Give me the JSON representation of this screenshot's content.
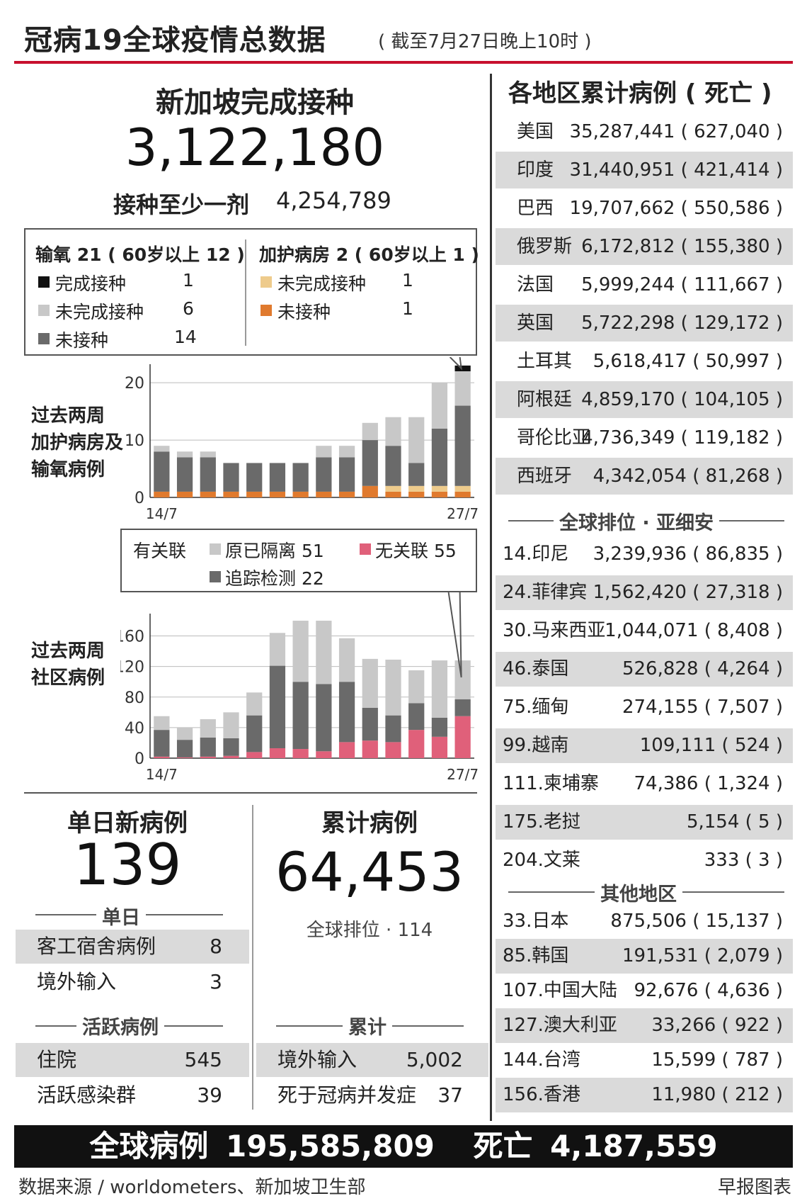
{
  "title": "冠病19全球疫情总数据",
  "subtitle": "( 截至7月27日晚上10时 )",
  "vaccination": {
    "heading": "新加坡完成接种",
    "completed": "3,122,180",
    "at_least_one_label": "接种至少一剂",
    "at_least_one": "4,254,789"
  },
  "oxygen_legend": {
    "oxygen_title": "输氧 21 ( 60岁以上 12 )",
    "icu_title": "加护病房 2 ( 60岁以上 1 )",
    "oxygen_items": [
      {
        "label": "完成接种",
        "value": "1",
        "color": "#111111"
      },
      {
        "label": "未完成接种",
        "value": "6",
        "color": "#c8c8c8"
      },
      {
        "label": "未接种",
        "value": "14",
        "color": "#6a6a6a"
      }
    ],
    "icu_items": [
      {
        "label": "未完成接种",
        "value": "1",
        "color": "#eecb8c"
      },
      {
        "label": "未接种",
        "value": "1",
        "color": "#e07a2e"
      }
    ]
  },
  "community_legend": {
    "linked_label": "有关联",
    "items": [
      {
        "label": "原已隔离  51",
        "color": "#c8c8c8"
      },
      {
        "label": "无关联  55",
        "color": "#e0607a"
      },
      {
        "label": "追踪检测  22",
        "color": "#6a6a6a"
      }
    ]
  },
  "chart_data": [
    {
      "type": "bar",
      "stacked": true,
      "title": "过去两周加护病房及输氧病例",
      "x_start": "14/7",
      "x_end": "27/7",
      "ylim": [
        0,
        22
      ],
      "yticks": [
        0,
        10,
        20
      ],
      "categories": [
        "14/7",
        "15/7",
        "16/7",
        "17/7",
        "18/7",
        "19/7",
        "20/7",
        "21/7",
        "22/7",
        "23/7",
        "24/7",
        "25/7",
        "26/7",
        "27/7"
      ],
      "series": [
        {
          "name": "未接种",
          "color": "#e07a2e",
          "values": [
            1,
            1,
            1,
            1,
            1,
            1,
            1,
            1,
            1,
            2,
            1,
            1,
            1,
            1
          ]
        },
        {
          "name": "未完成接种",
          "color": "#eecb8c",
          "values": [
            0,
            0,
            0,
            0,
            0,
            0,
            0,
            0,
            0,
            0,
            1,
            1,
            1,
            1
          ]
        },
        {
          "name": "未接种",
          "color": "#6a6a6a",
          "values": [
            7,
            6,
            6,
            5,
            5,
            5,
            5,
            6,
            6,
            8,
            7,
            4,
            10,
            14
          ]
        },
        {
          "name": "未完成接种",
          "color": "#c8c8c8",
          "values": [
            1,
            1,
            1,
            0,
            0,
            0,
            0,
            2,
            2,
            3,
            5,
            8,
            8,
            6
          ]
        },
        {
          "name": "完成接种",
          "color": "#111111",
          "values": [
            0,
            0,
            0,
            0,
            0,
            0,
            0,
            0,
            0,
            0,
            0,
            0,
            0,
            1
          ]
        }
      ]
    },
    {
      "type": "bar",
      "stacked": true,
      "title": "过去两周社区病例",
      "x_start": "14/7",
      "x_end": "27/7",
      "ylim": [
        0,
        180
      ],
      "yticks": [
        0,
        40,
        80,
        120,
        160
      ],
      "categories": [
        "14/7",
        "15/7",
        "16/7",
        "17/7",
        "18/7",
        "19/7",
        "20/7",
        "21/7",
        "22/7",
        "23/7",
        "24/7",
        "25/7",
        "26/7",
        "27/7"
      ],
      "series": [
        {
          "name": "无关联",
          "color": "#e0607a",
          "values": [
            2,
            1,
            2,
            3,
            8,
            13,
            12,
            9,
            21,
            23,
            21,
            37,
            28,
            55
          ]
        },
        {
          "name": "追踪检测",
          "color": "#6a6a6a",
          "values": [
            35,
            23,
            25,
            23,
            48,
            108,
            88,
            88,
            79,
            43,
            35,
            35,
            25,
            22
          ]
        },
        {
          "name": "原已隔离",
          "color": "#c8c8c8",
          "values": [
            18,
            16,
            24,
            34,
            30,
            43,
            80,
            83,
            57,
            64,
            73,
            43,
            75,
            51
          ]
        }
      ]
    }
  ],
  "chart_labels": {
    "chart1_side": [
      "过去两周",
      "加护病房及",
      "输氧病例"
    ],
    "chart2_side": [
      "过去两周",
      "社区病例"
    ]
  },
  "daily": {
    "heading": "单日新病例",
    "value": "139",
    "section": "单日",
    "rows": [
      {
        "label": "客工宿舍病例",
        "value": "8"
      },
      {
        "label": "境外输入",
        "value": "3"
      }
    ],
    "active_section": "活跃病例",
    "active_rows": [
      {
        "label": "住院",
        "value": "545"
      },
      {
        "label": "活跃感染群",
        "value": "39"
      }
    ]
  },
  "cumulative": {
    "heading": "累计病例",
    "value": "64,453",
    "rank": "全球排位 · 114",
    "section": "累计",
    "rows": [
      {
        "label": "境外输入",
        "value": "5,002"
      },
      {
        "label": "死于冠病并发症",
        "value": "37"
      }
    ]
  },
  "regions": {
    "heading": "各地区累计病例 ( 死亡 )",
    "top": [
      {
        "name": "美国",
        "value": "35,287,441 ( 627,040 )"
      },
      {
        "name": "印度",
        "value": "31,440,951 ( 421,414 )"
      },
      {
        "name": "巴西",
        "value": "19,707,662 ( 550,586 )"
      },
      {
        "name": "俄罗斯",
        "value": "6,172,812 ( 155,380 )"
      },
      {
        "name": "法国",
        "value": "5,999,244 ( 111,667 )"
      },
      {
        "name": "英国",
        "value": "5,722,298 ( 129,172 )"
      },
      {
        "name": "土耳其",
        "value": "5,618,417 ( 50,997 )"
      },
      {
        "name": "阿根廷",
        "value": "4,859,170 ( 104,105 )"
      },
      {
        "name": "哥伦比亚",
        "value": "4,736,349 ( 119,182 )"
      },
      {
        "name": "西班牙",
        "value": "4,342,054 ( 81,268 )"
      }
    ],
    "asean_label": "全球排位 · 亚细安",
    "asean": [
      {
        "name": "14.印尼",
        "value": "3,239,936 ( 86,835 )"
      },
      {
        "name": "24.菲律宾",
        "value": "1,562,420 ( 27,318 )"
      },
      {
        "name": "30.马来西亚",
        "value": "1,044,071 ( 8,408 )"
      },
      {
        "name": "46.泰国",
        "value": "526,828 ( 4,264 )"
      },
      {
        "name": "75.缅甸",
        "value": "274,155 ( 7,507 )"
      },
      {
        "name": "99.越南",
        "value": "109,111 ( 524 )"
      },
      {
        "name": "111.柬埔寨",
        "value": "74,386 ( 1,324 )"
      },
      {
        "name": "175.老挝",
        "value": "5,154 ( 5 )"
      },
      {
        "name": "204.文莱",
        "value": "333 ( 3 )"
      }
    ],
    "other_label": "其他地区",
    "other": [
      {
        "name": "33.日本",
        "value": "875,506 ( 15,137 )"
      },
      {
        "name": "85.韩国",
        "value": "191,531 ( 2,079 )"
      },
      {
        "name": "107.中国大陆",
        "value": "92,676 ( 4,636 )"
      },
      {
        "name": "127.澳大利亚",
        "value": "33,266 ( 922 )"
      },
      {
        "name": "144.台湾",
        "value": "15,599 ( 787 )"
      },
      {
        "name": "156.香港",
        "value": "11,980 ( 212 )"
      }
    ]
  },
  "footer": {
    "global_label": "全球病例",
    "global_value": "195,585,809",
    "death_label": "死亡",
    "death_value": "4,187,559",
    "source": "数据来源 / worldometers、新加坡卫生部",
    "brand": "早报图表"
  }
}
